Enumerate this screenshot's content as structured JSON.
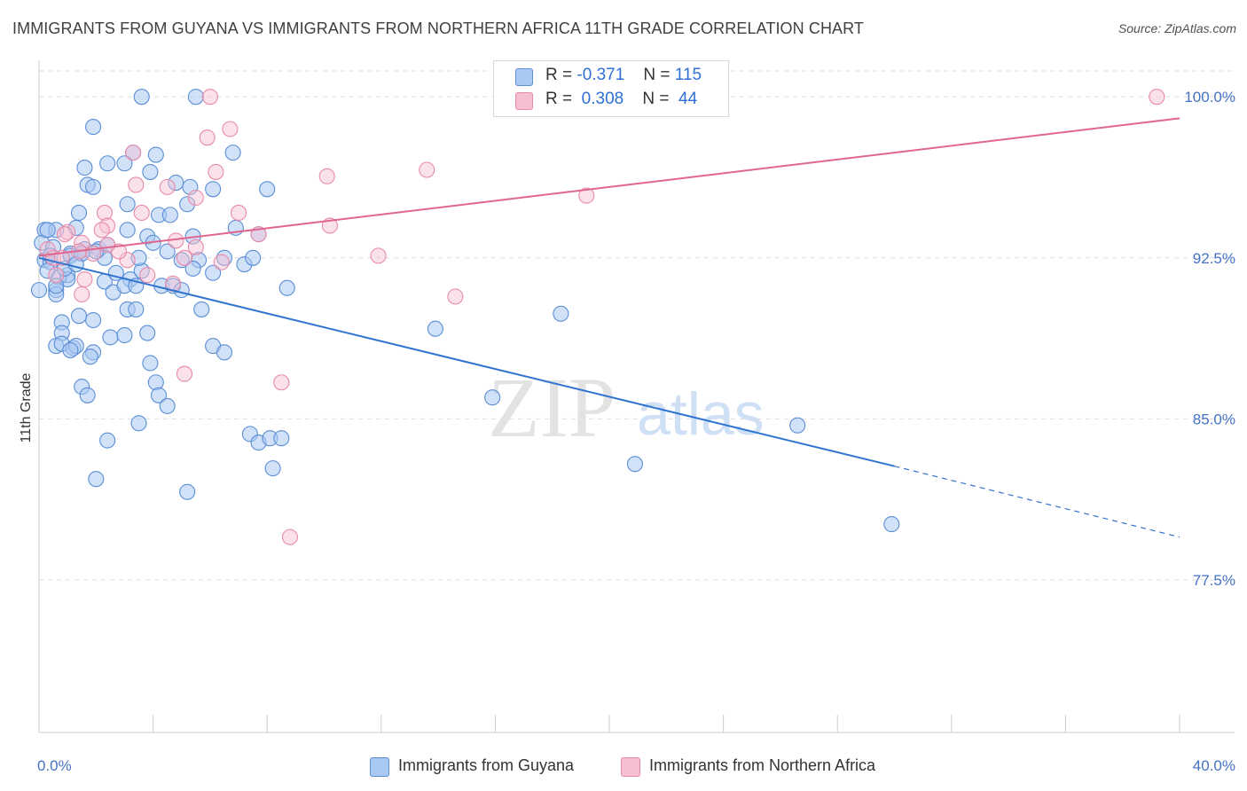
{
  "title": "IMMIGRANTS FROM GUYANA VS IMMIGRANTS FROM NORTHERN AFRICA 11TH GRADE CORRELATION CHART",
  "source": "Source: ZipAtlas.com",
  "watermark": {
    "zip": "ZIP",
    "atlas": "atlas"
  },
  "legend_top": {
    "rows": [
      {
        "r_label": "R =",
        "r_value": "-0.371",
        "n_label": "N =",
        "n_value": "115"
      },
      {
        "r_label": "R =",
        "r_value": "0.308",
        "n_label": "N =",
        "n_value": "44"
      }
    ]
  },
  "legend_bottom": {
    "items": [
      "Immigrants from Guyana",
      "Immigrants from Northern Africa"
    ]
  },
  "colors": {
    "blue_fill": "#a9c9f2",
    "blue_stroke": "#5b8ed6",
    "blue_line": "#2f74d0",
    "pink_fill": "#f6bfd0",
    "pink_stroke": "#e88aa8",
    "pink_line": "#e06690",
    "tick_text": "#4472c4",
    "grid": "#dddddd"
  },
  "chart_data": {
    "type": "scatter",
    "title": "IMMIGRANTS FROM GUYANA VS IMMIGRANTS FROM NORTHERN AFRICA 11TH GRADE CORRELATION CHART",
    "xlabel": "",
    "ylabel": "11th Grade",
    "xlim": [
      0,
      40
    ],
    "ylim": [
      70.4,
      101.7
    ],
    "x_tick_labels": [
      {
        "value": 0,
        "label": "0.0%"
      },
      {
        "value": 40,
        "label": "40.0%"
      }
    ],
    "y_tick_labels": [
      {
        "value": 100.0,
        "label": "100.0%"
      },
      {
        "value": 92.5,
        "label": "92.5%"
      },
      {
        "value": 85.0,
        "label": "85.0%"
      },
      {
        "value": 77.5,
        "label": "77.5%"
      }
    ],
    "x_minor_ticks": [
      4,
      8,
      12,
      16,
      20,
      24,
      28,
      32,
      36,
      40
    ],
    "grid": true,
    "legend_position": "top-center",
    "series": [
      {
        "name": "Immigrants from Guyana",
        "color": "#5b8ed6",
        "trend": {
          "x0": 0,
          "y0": 92.5,
          "x1": 30,
          "y1": 82.8,
          "dashed_to_x": 40,
          "dashed_to_y": 79.5
        },
        "points": [
          [
            3.6,
            100.0
          ],
          [
            5.5,
            100.0
          ],
          [
            1.9,
            98.6
          ],
          [
            3.3,
            97.4
          ],
          [
            4.1,
            97.3
          ],
          [
            2.4,
            96.9
          ],
          [
            1.6,
            96.7
          ],
          [
            3.0,
            96.9
          ],
          [
            6.8,
            97.4
          ],
          [
            3.9,
            96.5
          ],
          [
            4.8,
            96.0
          ],
          [
            1.7,
            95.9
          ],
          [
            1.9,
            95.8
          ],
          [
            5.3,
            95.8
          ],
          [
            6.1,
            95.7
          ],
          [
            8.0,
            95.7
          ],
          [
            3.1,
            95.0
          ],
          [
            5.2,
            95.0
          ],
          [
            1.4,
            94.6
          ],
          [
            4.2,
            94.5
          ],
          [
            4.6,
            94.5
          ],
          [
            1.3,
            93.9
          ],
          [
            0.2,
            93.8
          ],
          [
            0.6,
            93.8
          ],
          [
            3.1,
            93.8
          ],
          [
            3.8,
            93.5
          ],
          [
            5.4,
            93.5
          ],
          [
            7.7,
            93.6
          ],
          [
            0.1,
            93.2
          ],
          [
            0.5,
            93.0
          ],
          [
            1.6,
            92.9
          ],
          [
            2.1,
            92.9
          ],
          [
            2.4,
            93.1
          ],
          [
            4.0,
            93.2
          ],
          [
            1.1,
            92.7
          ],
          [
            1.5,
            92.7
          ],
          [
            2.3,
            92.5
          ],
          [
            0.2,
            92.4
          ],
          [
            0.4,
            92.3
          ],
          [
            5.0,
            92.4
          ],
          [
            5.6,
            92.4
          ],
          [
            6.5,
            92.5
          ],
          [
            7.2,
            92.2
          ],
          [
            0.3,
            91.9
          ],
          [
            1.0,
            91.7
          ],
          [
            0.7,
            91.6
          ],
          [
            1.0,
            91.5
          ],
          [
            2.3,
            91.4
          ],
          [
            3.2,
            91.5
          ],
          [
            3.6,
            91.9
          ],
          [
            5.4,
            92.0
          ],
          [
            6.1,
            91.8
          ],
          [
            0.0,
            91.0
          ],
          [
            0.6,
            91.0
          ],
          [
            2.6,
            90.9
          ],
          [
            3.0,
            91.2
          ],
          [
            3.4,
            91.2
          ],
          [
            4.3,
            91.2
          ],
          [
            4.7,
            91.2
          ],
          [
            8.7,
            91.1
          ],
          [
            0.6,
            90.8
          ],
          [
            3.1,
            90.1
          ],
          [
            3.4,
            90.1
          ],
          [
            5.7,
            90.1
          ],
          [
            1.4,
            89.8
          ],
          [
            1.9,
            89.6
          ],
          [
            0.8,
            89.5
          ],
          [
            0.8,
            89.0
          ],
          [
            3.8,
            89.0
          ],
          [
            0.6,
            88.4
          ],
          [
            0.8,
            88.5
          ],
          [
            1.2,
            88.3
          ],
          [
            1.3,
            88.4
          ],
          [
            1.1,
            88.2
          ],
          [
            2.5,
            88.8
          ],
          [
            3.0,
            88.9
          ],
          [
            6.1,
            88.4
          ],
          [
            6.5,
            88.1
          ],
          [
            1.9,
            88.1
          ],
          [
            1.8,
            87.9
          ],
          [
            3.9,
            87.6
          ],
          [
            4.1,
            86.7
          ],
          [
            1.5,
            86.5
          ],
          [
            1.7,
            86.1
          ],
          [
            4.2,
            86.1
          ],
          [
            4.5,
            85.6
          ],
          [
            3.5,
            84.8
          ],
          [
            7.4,
            84.3
          ],
          [
            7.7,
            83.9
          ],
          [
            8.1,
            84.1
          ],
          [
            8.5,
            84.1
          ],
          [
            2.4,
            84.0
          ],
          [
            8.2,
            82.7
          ],
          [
            2.0,
            82.2
          ],
          [
            5.2,
            81.6
          ],
          [
            13.9,
            89.2
          ],
          [
            15.9,
            86.0
          ],
          [
            18.3,
            89.9
          ],
          [
            20.9,
            82.9
          ],
          [
            26.6,
            84.7
          ],
          [
            29.9,
            80.1
          ],
          [
            2.0,
            92.8
          ],
          [
            1.1,
            92.6
          ],
          [
            0.9,
            92.0
          ],
          [
            1.5,
            92.7
          ],
          [
            0.3,
            93.8
          ],
          [
            0.4,
            92.6
          ],
          [
            0.6,
            91.2
          ],
          [
            1.3,
            92.2
          ],
          [
            4.5,
            92.8
          ],
          [
            3.5,
            92.5
          ],
          [
            2.7,
            91.8
          ],
          [
            5.0,
            91.0
          ],
          [
            6.9,
            93.9
          ],
          [
            7.5,
            92.5
          ]
        ]
      },
      {
        "name": "Immigrants from Northern Africa",
        "color": "#e88aa8",
        "trend": {
          "x0": 0,
          "y0": 92.6,
          "x1": 40,
          "y1": 99.0
        },
        "points": [
          [
            6.0,
            100.0
          ],
          [
            39.2,
            100.0
          ],
          [
            6.7,
            98.5
          ],
          [
            5.9,
            98.1
          ],
          [
            3.3,
            97.4
          ],
          [
            6.2,
            96.5
          ],
          [
            10.1,
            96.3
          ],
          [
            13.6,
            96.6
          ],
          [
            3.4,
            95.9
          ],
          [
            4.5,
            95.8
          ],
          [
            19.2,
            95.4
          ],
          [
            5.5,
            95.3
          ],
          [
            2.3,
            94.6
          ],
          [
            3.6,
            94.6
          ],
          [
            7.0,
            94.6
          ],
          [
            2.4,
            94.0
          ],
          [
            2.2,
            93.8
          ],
          [
            10.2,
            94.0
          ],
          [
            1.0,
            93.7
          ],
          [
            0.9,
            93.6
          ],
          [
            7.7,
            93.6
          ],
          [
            4.8,
            93.3
          ],
          [
            1.5,
            93.2
          ],
          [
            2.4,
            93.1
          ],
          [
            0.3,
            92.9
          ],
          [
            0.5,
            92.5
          ],
          [
            1.4,
            92.8
          ],
          [
            1.9,
            92.7
          ],
          [
            3.1,
            92.4
          ],
          [
            5.5,
            93.0
          ],
          [
            5.1,
            92.5
          ],
          [
            6.4,
            92.3
          ],
          [
            11.9,
            92.6
          ],
          [
            0.6,
            91.7
          ],
          [
            1.6,
            91.5
          ],
          [
            3.8,
            91.7
          ],
          [
            4.7,
            91.3
          ],
          [
            1.5,
            90.8
          ],
          [
            14.6,
            90.7
          ],
          [
            5.1,
            87.1
          ],
          [
            8.5,
            86.7
          ],
          [
            8.8,
            79.5
          ],
          [
            0.8,
            92.5
          ],
          [
            2.8,
            92.8
          ]
        ]
      }
    ]
  }
}
